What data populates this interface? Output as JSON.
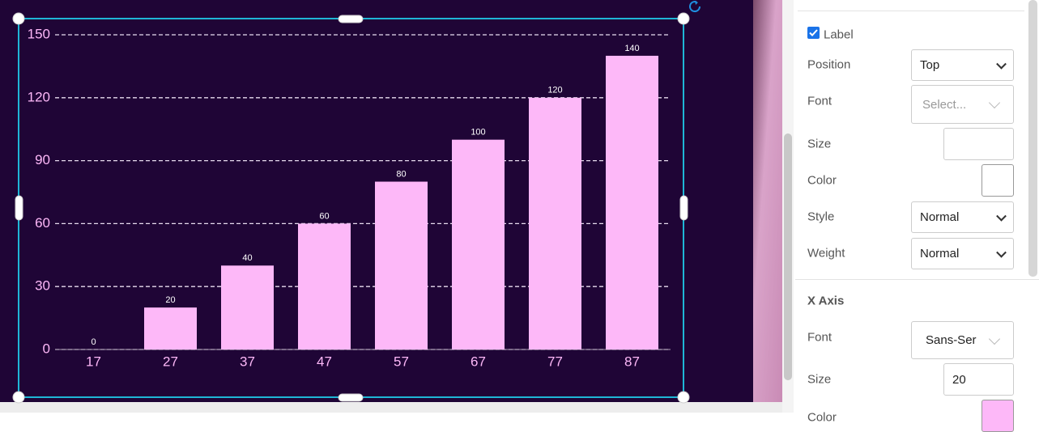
{
  "chart_data": {
    "type": "bar",
    "categories": [
      "17",
      "27",
      "37",
      "47",
      "57",
      "67",
      "77",
      "87"
    ],
    "values": [
      0,
      20,
      40,
      60,
      80,
      100,
      120,
      140
    ],
    "color": "#fdb8f8",
    "background": "#1f0536",
    "label_color": "#ffffff",
    "axis_label_color": "#fdb8f8",
    "ylim": [
      0,
      150
    ],
    "yticks": [
      0,
      30,
      60,
      90,
      120,
      150
    ],
    "grid": true
  },
  "panel": {
    "label_checkbox": "Label",
    "label_section": [
      {
        "label": "Position",
        "value": "Top"
      },
      {
        "label": "Font",
        "value": "Select..."
      },
      {
        "label": "Size",
        "value": ""
      },
      {
        "label": "Color"
      },
      {
        "label": "Style",
        "value": "Normal"
      },
      {
        "label": "Weight",
        "value": "Normal"
      }
    ],
    "x_axis_header": "X Axis",
    "x_axis_section": [
      {
        "label": "Font",
        "value": "Sans-Ser"
      },
      {
        "label": "Size",
        "value": "20"
      },
      {
        "label": "Color"
      }
    ]
  }
}
